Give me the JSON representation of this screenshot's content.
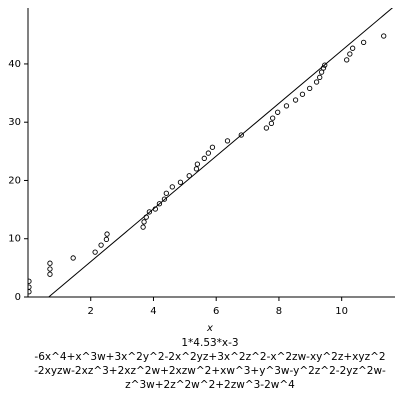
{
  "chart_data": {
    "type": "scatter",
    "xlim": [
      0,
      11.7
    ],
    "ylim": [
      0,
      49.6
    ],
    "xticks": [
      2,
      4,
      6,
      8,
      10
    ],
    "yticks": [
      0,
      10,
      20,
      30,
      40
    ],
    "xlabel": "x",
    "series": [
      {
        "type": "scatter",
        "color": "#000000",
        "x": [
          0.03,
          0.03,
          0.03,
          0.7,
          0.7,
          0.7,
          1.44,
          2.14,
          2.33,
          2.5,
          2.52,
          3.67,
          3.7,
          3.77,
          3.87,
          4.06,
          4.19,
          4.35,
          4.41,
          4.6,
          4.86,
          5.14,
          5.37,
          5.4,
          5.62,
          5.75,
          5.88,
          6.36,
          6.8,
          7.6,
          7.76,
          7.8,
          7.96,
          8.24,
          8.53,
          8.75,
          8.98,
          9.2,
          9.3,
          9.36,
          9.42,
          9.46,
          10.16,
          10.26,
          10.35,
          10.7,
          11.34
        ],
        "values": [
          2.7,
          1.7,
          0.9,
          5.8,
          4.8,
          3.9,
          6.7,
          7.7,
          8.9,
          9.9,
          10.8,
          12,
          12.9,
          13.7,
          14.6,
          15.1,
          16,
          16.8,
          17.8,
          18.9,
          19.7,
          20.8,
          22,
          22.8,
          23.8,
          24.7,
          25.7,
          26.8,
          27.8,
          29,
          29.8,
          30.7,
          31.7,
          32.8,
          33.8,
          34.8,
          35.8,
          36.9,
          37.7,
          38.6,
          39.3,
          39.8,
          40.7,
          41.7,
          42.7,
          43.7,
          44.8
        ]
      },
      {
        "type": "line",
        "color": "#000000",
        "x": [
          0.66,
          11.7
        ],
        "values": [
          0,
          50
        ]
      }
    ],
    "caption": [
      "1*4.53*x-3",
      "-6x^4+x^3w+3x^2y^2-2x^2yz+3x^2z^2-x^2zw-xy^2z+xyz^2",
      "-2xyzw-2xz^3+2xz^2w+2xzw^2+xw^3+y^3w-y^2z^2-2yz^2w-",
      "z^3w+2z^2w^2+2zw^3-2w^4"
    ]
  }
}
